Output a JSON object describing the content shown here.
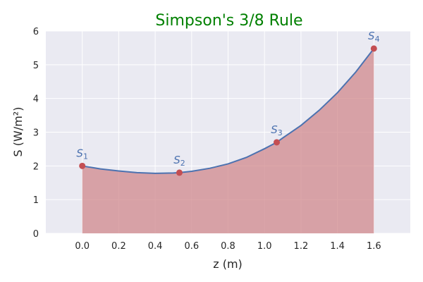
{
  "chart_data": {
    "type": "area",
    "title": "Simpson's 3/8 Rule",
    "xlabel": "z (m)",
    "ylabel": "S (W/m²)",
    "xlim": [
      -0.2,
      1.8
    ],
    "ylim": [
      0,
      6
    ],
    "x_ticks": [
      "0.0",
      "0.2",
      "0.4",
      "0.6",
      "0.8",
      "1.0",
      "1.2",
      "1.4",
      "1.6"
    ],
    "x_tick_values": [
      0.0,
      0.2,
      0.4,
      0.6,
      0.8,
      1.0,
      1.2,
      1.4,
      1.6
    ],
    "y_ticks": [
      "0",
      "1",
      "2",
      "3",
      "4",
      "5",
      "6"
    ],
    "y_tick_values": [
      0,
      1,
      2,
      3,
      4,
      5,
      6
    ],
    "grid": true,
    "curve": {
      "x": [
        0.0,
        0.1,
        0.2,
        0.3,
        0.4,
        0.5,
        0.533,
        0.6,
        0.7,
        0.8,
        0.9,
        1.0,
        1.067,
        1.1,
        1.2,
        1.3,
        1.4,
        1.5,
        1.6
      ],
      "y": [
        2.0,
        1.91,
        1.85,
        1.8,
        1.78,
        1.79,
        1.8,
        1.84,
        1.93,
        2.06,
        2.25,
        2.51,
        2.7,
        2.83,
        3.2,
        3.65,
        4.17,
        4.78,
        5.48
      ]
    },
    "points": {
      "x": [
        0.0,
        0.533,
        1.067,
        1.6
      ],
      "y": [
        2.0,
        1.8,
        2.7,
        5.48
      ],
      "labels": [
        {
          "base": "S",
          "sub": "1"
        },
        {
          "base": "S",
          "sub": "2"
        },
        {
          "base": "S",
          "sub": "3"
        },
        {
          "base": "S",
          "sub": "4"
        }
      ]
    },
    "colors": {
      "title": "#008000",
      "background": "#eaeaf2",
      "grid": "#ffffff",
      "line": "#4c72b0",
      "fill": "#d0888c",
      "point": "#c44e52",
      "annotation": "#4c72b0"
    }
  }
}
